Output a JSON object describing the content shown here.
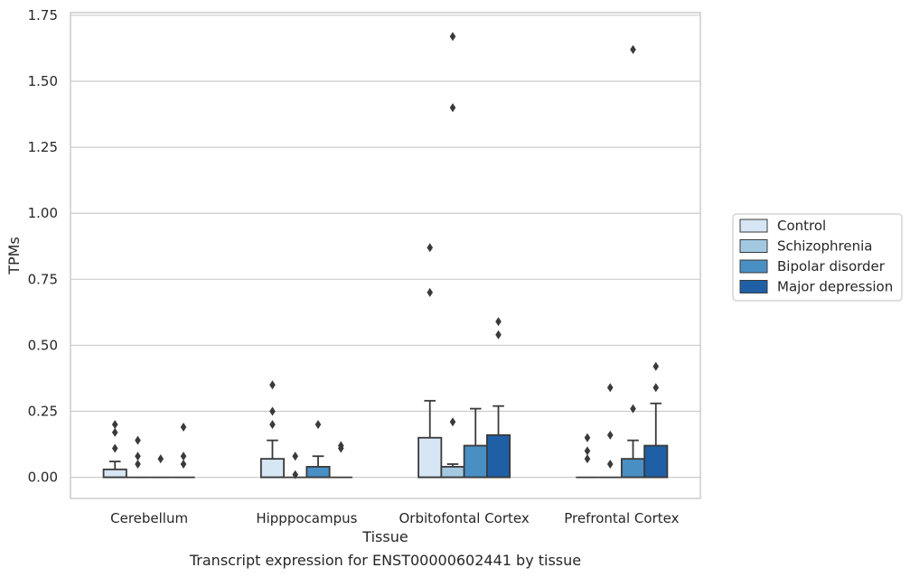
{
  "chart_data": {
    "type": "boxplot",
    "title": "",
    "xlabel": "Tissue",
    "ylabel": "TPMs",
    "caption": "Transcript expression for ENST00000602441 by tissue",
    "ylim": [
      -0.08,
      1.76
    ],
    "yticks": [
      "0.00",
      "0.25",
      "0.50",
      "0.75",
      "1.00",
      "1.25",
      "1.50",
      "1.75"
    ],
    "ytick_values": [
      0,
      0.25,
      0.5,
      0.75,
      1.0,
      1.25,
      1.5,
      1.75
    ],
    "grid": true,
    "legend_position": "right",
    "categories": [
      "Cerebellum",
      "Hipppocampus",
      "Orbitofontal Cortex",
      "Prefrontal Cortex"
    ],
    "series": [
      {
        "name": "Control",
        "color": "#d6e6f4",
        "boxes": [
          {
            "q1": 0,
            "median": 0,
            "q3": 0.03,
            "whisker_low": 0,
            "whisker_high": 0.06,
            "outliers": [
              0.11,
              0.17,
              0.2
            ]
          },
          {
            "q1": 0,
            "median": 0,
            "q3": 0.07,
            "whisker_low": 0,
            "whisker_high": 0.14,
            "outliers": [
              0.2,
              0.25,
              0.35
            ]
          },
          {
            "q1": 0,
            "median": 0,
            "q3": 0.15,
            "whisker_low": 0,
            "whisker_high": 0.29,
            "outliers": [
              0.7,
              0.87
            ]
          },
          {
            "q1": 0,
            "median": 0,
            "q3": 0,
            "whisker_low": 0,
            "whisker_high": 0,
            "outliers": [
              0.07,
              0.1,
              0.15
            ]
          }
        ]
      },
      {
        "name": "Schizophrenia",
        "color": "#a3c9e2",
        "boxes": [
          {
            "q1": 0,
            "median": 0,
            "q3": 0,
            "whisker_low": 0,
            "whisker_high": 0,
            "outliers": [
              0.05,
              0.08,
              0.14
            ]
          },
          {
            "q1": 0,
            "median": 0,
            "q3": 0,
            "whisker_low": 0,
            "whisker_high": 0,
            "outliers": [
              0.01,
              0.08
            ]
          },
          {
            "q1": 0,
            "median": 0,
            "q3": 0.04,
            "whisker_low": 0,
            "whisker_high": 0.05,
            "outliers": [
              0.21,
              1.4,
              1.67
            ]
          },
          {
            "q1": 0,
            "median": 0,
            "q3": 0,
            "whisker_low": 0,
            "whisker_high": 0,
            "outliers": [
              0.05,
              0.16,
              0.34
            ]
          }
        ]
      },
      {
        "name": "Bipolar disorder",
        "color": "#4a8fc4",
        "boxes": [
          {
            "q1": 0,
            "median": 0,
            "q3": 0,
            "whisker_low": 0,
            "whisker_high": 0,
            "outliers": [
              0.07
            ]
          },
          {
            "q1": 0,
            "median": 0,
            "q3": 0.04,
            "whisker_low": 0,
            "whisker_high": 0.08,
            "outliers": [
              0.2
            ]
          },
          {
            "q1": 0,
            "median": 0,
            "q3": 0.12,
            "whisker_low": 0,
            "whisker_high": 0.26,
            "outliers": []
          },
          {
            "q1": 0,
            "median": 0,
            "q3": 0.07,
            "whisker_low": 0,
            "whisker_high": 0.14,
            "outliers": [
              0.26,
              1.62
            ]
          }
        ]
      },
      {
        "name": "Major depression",
        "color": "#1f5fa6",
        "boxes": [
          {
            "q1": 0,
            "median": 0,
            "q3": 0,
            "whisker_low": 0,
            "whisker_high": 0,
            "outliers": [
              0.05,
              0.08,
              0.19
            ]
          },
          {
            "q1": 0,
            "median": 0,
            "q3": 0,
            "whisker_low": 0,
            "whisker_high": 0,
            "outliers": [
              0.11,
              0.12
            ]
          },
          {
            "q1": 0,
            "median": 0,
            "q3": 0.16,
            "whisker_low": 0,
            "whisker_high": 0.27,
            "outliers": [
              0.54,
              0.59
            ]
          },
          {
            "q1": 0,
            "median": 0,
            "q3": 0.12,
            "whisker_low": 0,
            "whisker_high": 0.28,
            "outliers": [
              0.34,
              0.42
            ]
          }
        ]
      }
    ]
  }
}
